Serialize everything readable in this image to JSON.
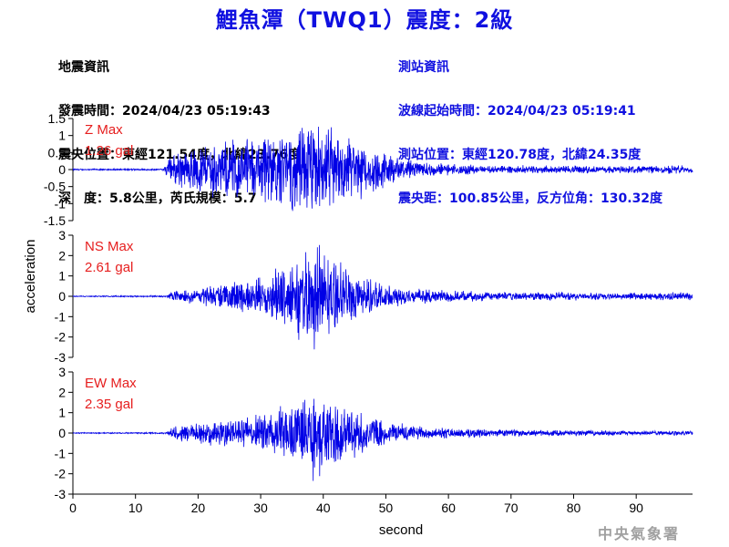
{
  "title": "鯉魚潭（TWQ1）震度：2級",
  "earthquake_info": {
    "heading": "地震資訊",
    "time": "發震時間：2024/04/23 05:19:43",
    "epicenter": "震央位置：東經121.54度，北緯23.76度",
    "depth_magnitude": "深　度：5.8公里，芮氏規模：5.7"
  },
  "station_info": {
    "heading": "測站資訊",
    "wave_start": "波線起始時間：2024/04/23 05:19:41",
    "location": "測站位置：東經120.78度，北緯24.35度",
    "distance": "震央距：100.85公里，反方位角：130.32度"
  },
  "watermark": "中央氣象署",
  "colors": {
    "trace": "#0000e6",
    "label": "#e61e1e",
    "title": "#1010e0"
  },
  "chart_data": {
    "type": "line",
    "xlabel": "second",
    "ylabel": "acceleration",
    "xlim": [
      0,
      99
    ],
    "xticks": [
      0,
      10,
      20,
      30,
      40,
      50,
      60,
      70,
      80,
      90
    ],
    "panels": [
      {
        "name": "Z",
        "label": "Z Max",
        "max_text": "1.26 gal",
        "peak": 1.26,
        "ylim": [
          -1.5,
          1.5
        ],
        "yticks": [
          -1.5,
          -1,
          -0.5,
          0,
          0.5,
          1,
          1.5
        ],
        "envelope": [
          [
            0,
            0.015
          ],
          [
            14.5,
            0.02
          ],
          [
            15.5,
            0.35
          ],
          [
            20,
            0.55
          ],
          [
            25,
            0.7
          ],
          [
            30,
            0.85
          ],
          [
            35,
            1.0
          ],
          [
            38,
            1.0
          ],
          [
            40,
            0.95
          ],
          [
            44,
            0.85
          ],
          [
            48,
            0.55
          ],
          [
            52,
            0.3
          ],
          [
            58,
            0.15
          ],
          [
            65,
            0.1
          ],
          [
            75,
            0.09
          ],
          [
            85,
            0.09
          ],
          [
            99,
            0.1
          ]
        ]
      },
      {
        "name": "NS",
        "label": "NS Max",
        "max_text": "2.61 gal",
        "peak": 2.61,
        "ylim": [
          -3,
          3
        ],
        "yticks": [
          -3,
          -2,
          -1,
          0,
          1,
          2,
          3
        ],
        "envelope": [
          [
            0,
            0.02
          ],
          [
            15,
            0.03
          ],
          [
            16,
            0.2
          ],
          [
            20,
            0.35
          ],
          [
            25,
            0.55
          ],
          [
            30,
            0.8
          ],
          [
            35,
            1.4
          ],
          [
            38,
            2.2
          ],
          [
            40,
            2.0
          ],
          [
            42,
            1.4
          ],
          [
            45,
            0.9
          ],
          [
            50,
            0.5
          ],
          [
            55,
            0.3
          ],
          [
            62,
            0.2
          ],
          [
            70,
            0.17
          ],
          [
            80,
            0.15
          ],
          [
            90,
            0.15
          ],
          [
            99,
            0.15
          ]
        ]
      },
      {
        "name": "EW",
        "label": "EW Max",
        "max_text": "2.35 gal",
        "peak": 2.35,
        "ylim": [
          -3,
          3
        ],
        "yticks": [
          -3,
          -2,
          -1,
          0,
          1,
          2,
          3
        ],
        "envelope": [
          [
            0,
            0.02
          ],
          [
            15,
            0.03
          ],
          [
            16,
            0.3
          ],
          [
            20,
            0.5
          ],
          [
            25,
            0.6
          ],
          [
            30,
            0.8
          ],
          [
            35,
            1.2
          ],
          [
            38,
            1.9
          ],
          [
            40,
            1.8
          ],
          [
            43,
            1.3
          ],
          [
            46,
            0.9
          ],
          [
            50,
            0.5
          ],
          [
            55,
            0.3
          ],
          [
            62,
            0.2
          ],
          [
            70,
            0.15
          ],
          [
            80,
            0.12
          ],
          [
            90,
            0.1
          ],
          [
            99,
            0.1
          ]
        ]
      }
    ]
  }
}
